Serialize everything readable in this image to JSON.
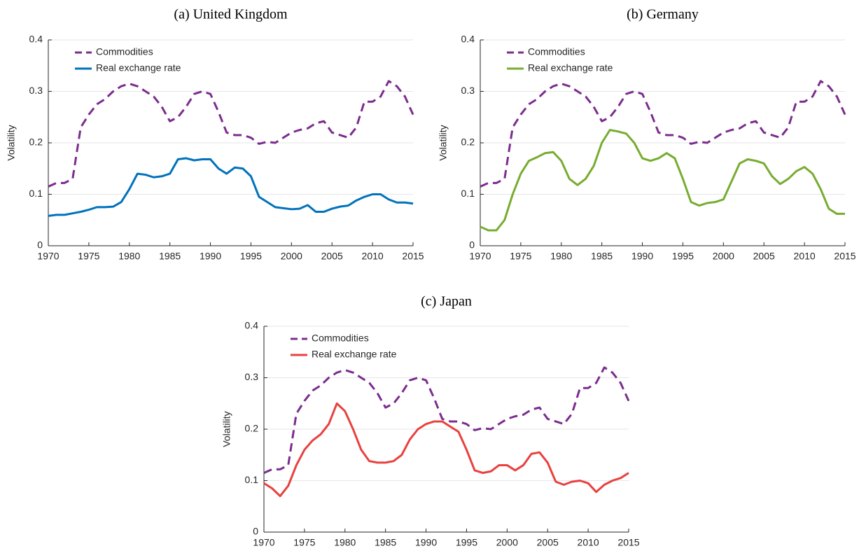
{
  "chart_data": [
    {
      "type": "line",
      "title": "(a) United Kingdom",
      "ylabel": "Volatility",
      "x": [
        1970,
        1971,
        1972,
        1973,
        1974,
        1975,
        1976,
        1977,
        1978,
        1979,
        1980,
        1981,
        1982,
        1983,
        1984,
        1985,
        1986,
        1987,
        1988,
        1989,
        1990,
        1991,
        1992,
        1993,
        1994,
        1995,
        1996,
        1997,
        1998,
        1999,
        2000,
        2001,
        2002,
        2003,
        2004,
        2005,
        2006,
        2007,
        2008,
        2009,
        2010,
        2011,
        2012,
        2013,
        2014,
        2015
      ],
      "series": [
        {
          "name": "Commodities",
          "color": "#7b2d8e",
          "linestyle": "dashed",
          "values": [
            0.115,
            0.122,
            0.122,
            0.13,
            0.23,
            0.255,
            0.275,
            0.285,
            0.3,
            0.31,
            0.315,
            0.31,
            0.3,
            0.29,
            0.27,
            0.242,
            0.25,
            0.27,
            0.295,
            0.3,
            0.295,
            0.26,
            0.22,
            0.215,
            0.215,
            0.21,
            0.198,
            0.202,
            0.2,
            0.21,
            0.22,
            0.225,
            0.228,
            0.238,
            0.242,
            0.22,
            0.215,
            0.21,
            0.23,
            0.28,
            0.28,
            0.29,
            0.32,
            0.31,
            0.29,
            0.255
          ]
        },
        {
          "name": "Real exchange rate",
          "color": "#0072bd",
          "linestyle": "solid",
          "values": [
            0.058,
            0.06,
            0.06,
            0.063,
            0.066,
            0.07,
            0.075,
            0.075,
            0.076,
            0.085,
            0.11,
            0.14,
            0.138,
            0.133,
            0.135,
            0.14,
            0.168,
            0.17,
            0.166,
            0.168,
            0.168,
            0.15,
            0.14,
            0.152,
            0.15,
            0.135,
            0.095,
            0.085,
            0.075,
            0.073,
            0.071,
            0.072,
            0.079,
            0.066,
            0.066,
            0.072,
            0.076,
            0.078,
            0.088,
            0.095,
            0.1,
            0.1,
            0.09,
            0.084,
            0.084,
            0.082
          ]
        }
      ],
      "xlim": [
        1970,
        2015
      ],
      "xticks": [
        1970,
        1975,
        1980,
        1985,
        1990,
        1995,
        2000,
        2005,
        2010,
        2015
      ],
      "ylim": [
        0,
        0.4
      ],
      "yticks": [
        0,
        0.1,
        0.2,
        0.3,
        0.4
      ],
      "grid": true,
      "legend": "upper left"
    },
    {
      "type": "line",
      "title": "(b) Germany",
      "ylabel": "Volatility",
      "x": [
        1970,
        1971,
        1972,
        1973,
        1974,
        1975,
        1976,
        1977,
        1978,
        1979,
        1980,
        1981,
        1982,
        1983,
        1984,
        1985,
        1986,
        1987,
        1988,
        1989,
        1990,
        1991,
        1992,
        1993,
        1994,
        1995,
        1996,
        1997,
        1998,
        1999,
        2000,
        2001,
        2002,
        2003,
        2004,
        2005,
        2006,
        2007,
        2008,
        2009,
        2010,
        2011,
        2012,
        2013,
        2014,
        2015
      ],
      "series": [
        {
          "name": "Commodities",
          "color": "#7b2d8e",
          "linestyle": "dashed",
          "values": [
            0.115,
            0.122,
            0.122,
            0.13,
            0.23,
            0.255,
            0.275,
            0.285,
            0.3,
            0.31,
            0.315,
            0.31,
            0.3,
            0.29,
            0.27,
            0.242,
            0.25,
            0.27,
            0.295,
            0.3,
            0.295,
            0.26,
            0.22,
            0.215,
            0.215,
            0.21,
            0.198,
            0.202,
            0.2,
            0.21,
            0.22,
            0.225,
            0.228,
            0.238,
            0.242,
            0.22,
            0.215,
            0.21,
            0.23,
            0.28,
            0.28,
            0.29,
            0.32,
            0.31,
            0.29,
            0.255
          ]
        },
        {
          "name": "Real exchange rate",
          "color": "#77ac30",
          "linestyle": "solid",
          "values": [
            0.037,
            0.03,
            0.03,
            0.05,
            0.1,
            0.14,
            0.165,
            0.172,
            0.18,
            0.182,
            0.165,
            0.13,
            0.118,
            0.13,
            0.155,
            0.2,
            0.225,
            0.222,
            0.218,
            0.2,
            0.17,
            0.165,
            0.17,
            0.18,
            0.17,
            0.13,
            0.085,
            0.078,
            0.083,
            0.085,
            0.09,
            0.125,
            0.16,
            0.168,
            0.165,
            0.16,
            0.135,
            0.12,
            0.13,
            0.145,
            0.153,
            0.14,
            0.11,
            0.072,
            0.062,
            0.062
          ]
        }
      ],
      "xlim": [
        1970,
        2015
      ],
      "xticks": [
        1970,
        1975,
        1980,
        1985,
        1990,
        1995,
        2000,
        2005,
        2010,
        2015
      ],
      "ylim": [
        0,
        0.4
      ],
      "yticks": [
        0,
        0.1,
        0.2,
        0.3,
        0.4
      ],
      "grid": true,
      "legend": "upper left"
    },
    {
      "type": "line",
      "title": "(c) Japan",
      "ylabel": "Volatility",
      "x": [
        1970,
        1971,
        1972,
        1973,
        1974,
        1975,
        1976,
        1977,
        1978,
        1979,
        1980,
        1981,
        1982,
        1983,
        1984,
        1985,
        1986,
        1987,
        1988,
        1989,
        1990,
        1991,
        1992,
        1993,
        1994,
        1995,
        1996,
        1997,
        1998,
        1999,
        2000,
        2001,
        2002,
        2003,
        2004,
        2005,
        2006,
        2007,
        2008,
        2009,
        2010,
        2011,
        2012,
        2013,
        2014,
        2015
      ],
      "series": [
        {
          "name": "Commodities",
          "color": "#7b2d8e",
          "linestyle": "dashed",
          "values": [
            0.115,
            0.122,
            0.122,
            0.13,
            0.23,
            0.255,
            0.275,
            0.285,
            0.3,
            0.31,
            0.315,
            0.31,
            0.3,
            0.29,
            0.27,
            0.242,
            0.25,
            0.27,
            0.295,
            0.3,
            0.295,
            0.26,
            0.22,
            0.215,
            0.215,
            0.21,
            0.198,
            0.202,
            0.2,
            0.21,
            0.22,
            0.225,
            0.228,
            0.238,
            0.242,
            0.22,
            0.215,
            0.21,
            0.23,
            0.28,
            0.28,
            0.29,
            0.32,
            0.31,
            0.29,
            0.255
          ]
        },
        {
          "name": "Real exchange rate",
          "color": "#e8413f",
          "linestyle": "solid",
          "values": [
            0.095,
            0.085,
            0.07,
            0.09,
            0.13,
            0.16,
            0.178,
            0.19,
            0.21,
            0.25,
            0.235,
            0.2,
            0.16,
            0.138,
            0.135,
            0.135,
            0.138,
            0.15,
            0.18,
            0.2,
            0.21,
            0.215,
            0.215,
            0.205,
            0.195,
            0.16,
            0.12,
            0.115,
            0.118,
            0.13,
            0.13,
            0.12,
            0.13,
            0.152,
            0.155,
            0.135,
            0.098,
            0.092,
            0.098,
            0.1,
            0.095,
            0.078,
            0.092,
            0.1,
            0.105,
            0.115
          ]
        }
      ],
      "xlim": [
        1970,
        2015
      ],
      "xticks": [
        1970,
        1975,
        1980,
        1985,
        1990,
        1995,
        2000,
        2005,
        2010,
        2015
      ],
      "ylim": [
        0,
        0.4
      ],
      "yticks": [
        0,
        0.1,
        0.2,
        0.3,
        0.4
      ],
      "grid": true,
      "legend": "upper left"
    }
  ]
}
